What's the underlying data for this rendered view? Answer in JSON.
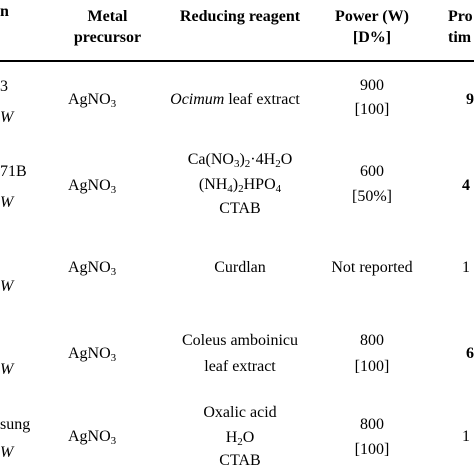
{
  "header": {
    "col1": "n",
    "metal": [
      "Metal",
      "precursor"
    ],
    "reducing": "Reducing reagent",
    "power": [
      "Power (W)",
      "[D%]"
    ],
    "proc": [
      "Pro",
      "tim"
    ]
  },
  "rows": [
    {
      "col1": [
        "3",
        "W"
      ],
      "metal": "AgNO3",
      "reducing_italic": "Ocimum",
      "reducing_rest": " leaf extract",
      "power": [
        "900",
        "[100]"
      ],
      "proc": "9"
    },
    {
      "col1": [
        "71B",
        "W"
      ],
      "metal": "AgNO3",
      "reducing": [
        "Ca(NO3)2·4H2O",
        "(NH4)2HPO4",
        "CTAB"
      ],
      "power": [
        "600",
        "[50%]"
      ],
      "proc": "4"
    },
    {
      "col1": [
        "W"
      ],
      "metal": "AgNO3",
      "reducing": [
        "Curdlan"
      ],
      "power": [
        "Not reported"
      ],
      "proc": "1"
    },
    {
      "col1": [
        "W"
      ],
      "metal": "AgNO3",
      "reducing": [
        "Coleus amboinicu",
        "leaf extract"
      ],
      "power": [
        "800",
        "[100]"
      ],
      "proc": "6"
    },
    {
      "col1": [
        "sung",
        "W"
      ],
      "metal": "AgNO3",
      "reducing": [
        "Oxalic acid",
        "H2O",
        "CTAB"
      ],
      "power": [
        "800",
        "[100]"
      ],
      "proc": "1"
    }
  ]
}
